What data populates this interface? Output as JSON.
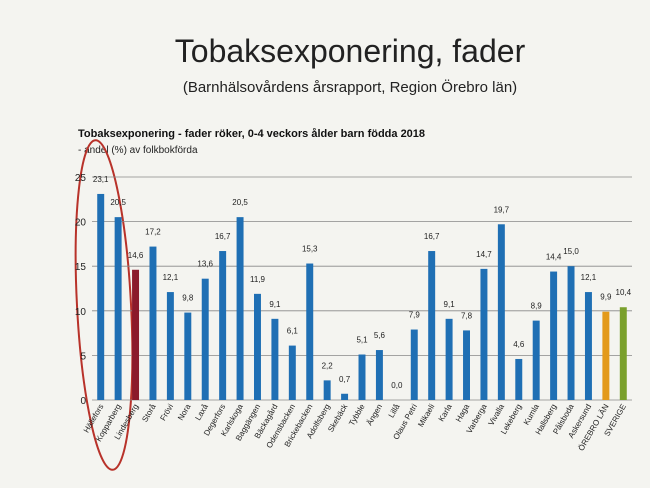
{
  "chart_data": {
    "type": "bar",
    "slide_title": "Tobaksexponering, fader",
    "slide_subtitle": "(Barnhälsovårdens årsrapport, Region Örebro län)",
    "title": "Tobaksexponering - fader röker, 0-4 veckors ålder barn födda 2018",
    "subtitle": "- andel (%) av folkbokförda",
    "categories": [
      "Hällefors",
      "Kopparberg",
      "Lindesberg",
      "Storå",
      "Frövi",
      "Nora",
      "Laxå",
      "Degerfors",
      "Karlskoga",
      "Baggängen",
      "Bäckagård",
      "Odensbacken",
      "Brickebacken",
      "Adolfsberg",
      "Skebäck",
      "Tybble",
      "Ängen",
      "Lillå",
      "Olaus Petri",
      "Mikaeli",
      "Karla",
      "Haga",
      "Varberga",
      "Vivalla",
      "Lekeberg",
      "Kumla",
      "Hallsberg",
      "Pålsboda",
      "Askersund",
      "ÖREBRO LÄN",
      "SVERIGE"
    ],
    "values": [
      23.1,
      20.5,
      14.6,
      17.2,
      12.1,
      9.8,
      13.6,
      16.7,
      20.5,
      11.9,
      9.1,
      6.1,
      15.3,
      2.2,
      0.7,
      5.1,
      5.6,
      0.0,
      7.9,
      16.7,
      9.1,
      7.8,
      14.7,
      19.7,
      4.6,
      8.9,
      14.4,
      15.0,
      12.1,
      9.9,
      10.4
    ],
    "value_labels": [
      "23,1",
      "20,5",
      "14,6",
      "17,2",
      "12,1",
      "9,8",
      "13,6",
      "16,7",
      "20,5",
      "11,9",
      "9,1",
      "6,1",
      "15,3",
      "2,2",
      "0,7",
      "5,1",
      "5,6",
      "0,0",
      "7,9",
      "16,7",
      "9,1",
      "7,8",
      "14,7",
      "19,7",
      "4,6",
      "8,9",
      "14,4",
      "15,0",
      "12,1",
      "9,9",
      "10,4"
    ],
    "colors": [
      "#1f6fb4",
      "#1f6fb4",
      "#8b1a2b",
      "#1f6fb4",
      "#1f6fb4",
      "#1f6fb4",
      "#1f6fb4",
      "#1f6fb4",
      "#1f6fb4",
      "#1f6fb4",
      "#1f6fb4",
      "#1f6fb4",
      "#1f6fb4",
      "#1f6fb4",
      "#1f6fb4",
      "#1f6fb4",
      "#1f6fb4",
      "#1f6fb4",
      "#1f6fb4",
      "#1f6fb4",
      "#1f6fb4",
      "#1f6fb4",
      "#1f6fb4",
      "#1f6fb4",
      "#1f6fb4",
      "#1f6fb4",
      "#1f6fb4",
      "#1f6fb4",
      "#1f6fb4",
      "#e39a1c",
      "#7aa02c"
    ],
    "ylim": [
      0,
      25
    ],
    "yticks": [
      0,
      5,
      10,
      15,
      20,
      25
    ],
    "grid": true
  }
}
